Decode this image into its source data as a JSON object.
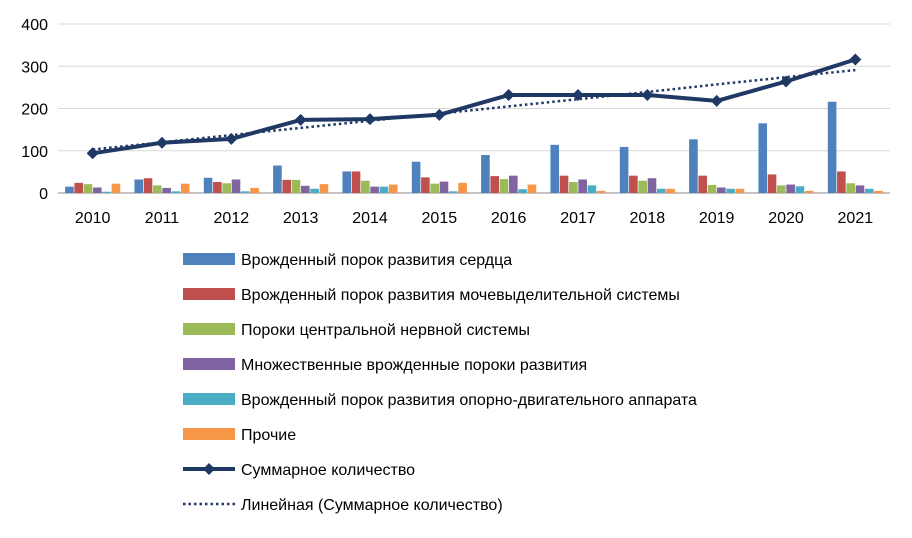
{
  "chart_data": {
    "type": "bar",
    "categories": [
      "2010",
      "2011",
      "2012",
      "2013",
      "2014",
      "2015",
      "2016",
      "2017",
      "2018",
      "2019",
      "2020",
      "2021"
    ],
    "ylim": [
      0,
      400
    ],
    "yticks": [
      "0",
      "100",
      "200",
      "300",
      "400"
    ],
    "grid": true,
    "legend_position": "bottom",
    "series": [
      {
        "name": "Врожденный порок развития сердца",
        "type": "bar",
        "color": "#4F81BD",
        "values": [
          15,
          32,
          36,
          65,
          51,
          74,
          90,
          114,
          109,
          127,
          165,
          216
        ]
      },
      {
        "name": "Врожденный порок развития мочевыделительной системы",
        "type": "bar",
        "color": "#C0504D",
        "values": [
          24,
          35,
          26,
          31,
          51,
          37,
          40,
          41,
          41,
          41,
          44,
          51
        ]
      },
      {
        "name": "Пороки центральной нервной системы",
        "type": "bar",
        "color": "#9BBB59",
        "values": [
          21,
          18,
          23,
          31,
          29,
          22,
          33,
          26,
          29,
          19,
          18,
          23
        ]
      },
      {
        "name": "Множественные врожденные пороки развития",
        "type": "bar",
        "color": "#8064A2",
        "values": [
          13,
          12,
          32,
          17,
          15,
          27,
          41,
          32,
          35,
          13,
          20,
          18
        ]
      },
      {
        "name": "Врожденный порок развития опорно-двигательного аппарата",
        "type": "bar",
        "color": "#4BACC6",
        "values": [
          3,
          4,
          4,
          10,
          15,
          4,
          9,
          18,
          10,
          10,
          16,
          10
        ]
      },
      {
        "name": "Прочие",
        "type": "bar",
        "color": "#F79646",
        "values": [
          22,
          22,
          12,
          21,
          20,
          24,
          20,
          5,
          10,
          10,
          5,
          5
        ]
      },
      {
        "name": "Суммарное количество",
        "type": "line",
        "marker": "diamond",
        "color": "#1F3864",
        "values": [
          94,
          119,
          128,
          173,
          175,
          185,
          232,
          232,
          232,
          218,
          264,
          316
        ]
      },
      {
        "name": "Линейная (Суммарное количество)",
        "type": "line",
        "dash": "dotted",
        "color": "#1F3864",
        "values": [
          103,
          120,
          137,
          154,
          171,
          188,
          205,
          222,
          239,
          257,
          274,
          291
        ]
      }
    ]
  }
}
